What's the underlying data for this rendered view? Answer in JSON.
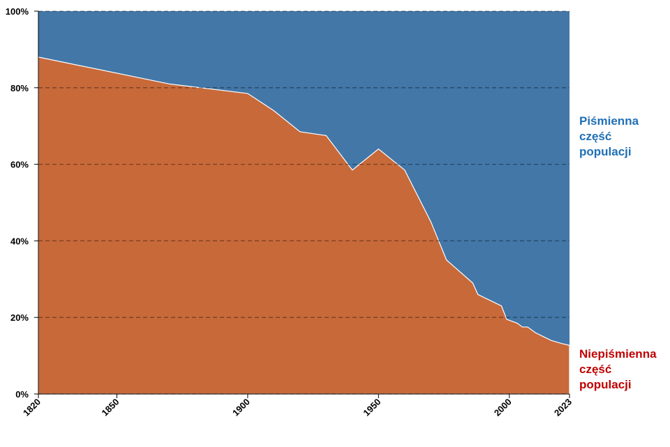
{
  "chart_data": {
    "type": "stacked-area",
    "x": [
      1820,
      1870,
      1900,
      1910,
      1920,
      1930,
      1940,
      1950,
      1960,
      1970,
      1976,
      1986,
      1988,
      1997,
      1999,
      2003,
      2005,
      2007,
      2010,
      2013,
      2016,
      2020,
      2023
    ],
    "series": [
      {
        "name": "Niepiśmienna część populacji",
        "color": "#c8693a",
        "label_color": "#c00000",
        "values": [
          88,
          81,
          78.5,
          74,
          68.5,
          67.5,
          58.5,
          64,
          58.5,
          45,
          35,
          29,
          26,
          23,
          19.5,
          18.5,
          17.5,
          17.5,
          16,
          15,
          14,
          13.2,
          12.7
        ]
      },
      {
        "name": "Piśmienna część populacji",
        "color": "#4277a8",
        "label_color": "#1f6fb5",
        "values": [
          12,
          19,
          21.5,
          26,
          31.5,
          32.5,
          41.5,
          36,
          41.5,
          55,
          65,
          71,
          74,
          77,
          80.5,
          81.5,
          82.5,
          82.5,
          84,
          85,
          86,
          86.8,
          87.3
        ]
      }
    ],
    "xlim": [
      1820,
      2023
    ],
    "xticks": [
      1820,
      1850,
      1900,
      1950,
      2000,
      2023
    ],
    "ylim": [
      0,
      100
    ],
    "yticks": [
      {
        "value": 0,
        "label": "0%"
      },
      {
        "value": 20,
        "label": "20%"
      },
      {
        "value": 40,
        "label": "40%"
      },
      {
        "value": 60,
        "label": "60%"
      },
      {
        "value": 80,
        "label": "80%"
      },
      {
        "value": 100,
        "label": "100%"
      }
    ],
    "grid": true
  }
}
